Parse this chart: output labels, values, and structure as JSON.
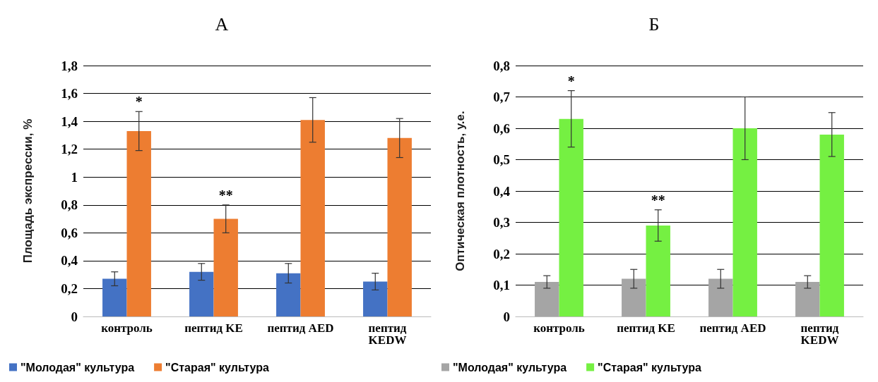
{
  "chart_data": [
    {
      "type": "bar",
      "title": "А",
      "ylabel": "Площадь экспрессии, %",
      "categories": [
        "контроль",
        "пептид KE",
        "пептид AED",
        "пептид KEDW"
      ],
      "series": [
        {
          "name": "\"Молодая\" культура",
          "color": "#4472c4",
          "values": [
            0.27,
            0.32,
            0.31,
            0.25
          ],
          "errors": [
            0.05,
            0.06,
            0.07,
            0.06
          ]
        },
        {
          "name": "\"Старая\" культура",
          "color": "#ed7d31",
          "values": [
            1.33,
            0.7,
            1.41,
            1.28
          ],
          "errors": [
            0.14,
            0.1,
            0.16,
            0.14
          ]
        }
      ],
      "ylim": [
        0,
        1.8
      ],
      "yticks": [
        {
          "value": 0,
          "label": "0"
        },
        {
          "value": 0.2,
          "label": "0,2"
        },
        {
          "value": 0.4,
          "label": "0,4"
        },
        {
          "value": 0.6,
          "label": "0,6"
        },
        {
          "value": 0.8,
          "label": "0,8"
        },
        {
          "value": 1,
          "label": "1"
        },
        {
          "value": 1.2,
          "label": "1,2"
        },
        {
          "value": 1.4,
          "label": "1,4"
        },
        {
          "value": 1.6,
          "label": "1,6"
        },
        {
          "value": 1.8,
          "label": "1,8"
        }
      ],
      "grid": "y",
      "legend": "bottom left",
      "annotations": [
        {
          "text": "*",
          "x": "контроль",
          "y": 1.33
        },
        {
          "text": "**",
          "x": "пептид KE",
          "y": 0.7
        }
      ]
    },
    {
      "type": "bar",
      "title": "Б",
      "ylabel": "Оптическая плотность, у.е.",
      "categories": [
        "контроль",
        "пептид KE",
        "пептид AED",
        "пептид KEDW"
      ],
      "series": [
        {
          "name": "\"Молодая\" культура",
          "color": "#a5a5a5",
          "values": [
            0.11,
            0.12,
            0.12,
            0.11
          ],
          "errors": [
            0.02,
            0.03,
            0.03,
            0.02
          ]
        },
        {
          "name": "\"Старая\" культура",
          "color": "#75f042",
          "values": [
            0.63,
            0.29,
            0.6,
            0.58
          ],
          "errors": [
            0.09,
            0.05,
            0.1,
            0.07
          ]
        }
      ],
      "ylim": [
        0,
        0.8
      ],
      "yticks": [
        {
          "value": 0,
          "label": "0"
        },
        {
          "value": 0.1,
          "label": "0,1"
        },
        {
          "value": 0.2,
          "label": "0,2"
        },
        {
          "value": 0.3,
          "label": "0,3"
        },
        {
          "value": 0.4,
          "label": "0,4"
        },
        {
          "value": 0.5,
          "label": "0,5"
        },
        {
          "value": 0.6,
          "label": "0,6"
        },
        {
          "value": 0.7,
          "label": "0,7"
        },
        {
          "value": 0.8,
          "label": "0,8"
        }
      ],
      "grid": "y",
      "legend": "bottom left",
      "annotations": [
        {
          "text": "*",
          "x": "контроль",
          "y": 0.63
        },
        {
          "text": "**",
          "x": "пептид KE",
          "y": 0.29
        }
      ]
    }
  ]
}
